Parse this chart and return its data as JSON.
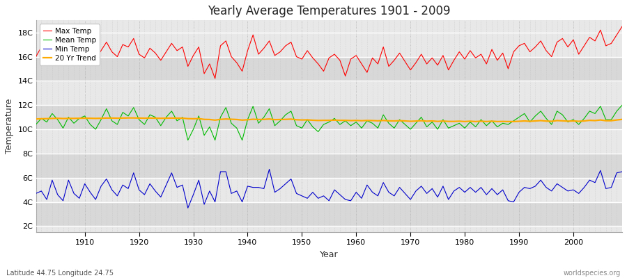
{
  "title": "Yearly Average Temperatures 1901 - 2009",
  "xlabel": "Year",
  "ylabel": "Temperature",
  "lat_lon_label": "Latitude 44.75 Longitude 24.75",
  "source_label": "worldspecies.org",
  "year_start": 1901,
  "year_end": 2009,
  "yticks": [
    2,
    4,
    6,
    8,
    10,
    12,
    14,
    16,
    18
  ],
  "ytick_labels": [
    "2C",
    "4C",
    "6C",
    "8C",
    "10C",
    "12C",
    "14C",
    "16C",
    "18C"
  ],
  "ylim": [
    1.5,
    19.0
  ],
  "fig_bg_color": "#ffffff",
  "plot_bg_color": "#e8e8e8",
  "line_color_max": "#ff0000",
  "line_color_mean": "#00bb00",
  "line_color_min": "#0000cc",
  "line_color_trend": "#ffaa00",
  "legend_labels": [
    "Max Temp",
    "Mean Temp",
    "Min Temp",
    "20 Yr Trend"
  ],
  "max_temps": [
    16.0,
    16.8,
    16.3,
    16.9,
    17.1,
    15.3,
    17.2,
    16.5,
    17.4,
    16.8,
    16.1,
    15.8,
    16.5,
    17.2,
    16.4,
    16.0,
    17.0,
    16.8,
    17.5,
    16.2,
    15.9,
    16.7,
    16.3,
    15.7,
    16.4,
    17.1,
    16.5,
    16.8,
    15.2,
    16.1,
    16.8,
    14.6,
    15.4,
    14.2,
    16.9,
    17.3,
    16.0,
    15.5,
    14.8,
    16.5,
    17.8,
    16.2,
    16.7,
    17.3,
    16.1,
    16.4,
    16.9,
    17.2,
    16.0,
    15.8,
    16.5,
    15.9,
    15.4,
    14.8,
    15.9,
    16.2,
    15.7,
    14.4,
    15.8,
    16.1,
    15.4,
    14.7,
    15.9,
    15.4,
    16.8,
    15.2,
    15.7,
    16.3,
    15.6,
    14.9,
    15.5,
    16.2,
    15.4,
    15.9,
    15.3,
    16.1,
    14.9,
    15.7,
    16.4,
    15.8,
    16.5,
    15.9,
    16.2,
    15.4,
    16.6,
    15.7,
    16.3,
    15.0,
    16.4,
    16.9,
    17.1,
    16.4,
    16.8,
    17.3,
    16.5,
    16.0,
    17.2,
    17.5,
    16.8,
    17.4,
    16.2,
    16.9,
    17.6,
    17.3,
    18.2,
    16.9,
    17.1,
    17.8,
    18.5
  ],
  "mean_temps": [
    10.4,
    10.9,
    10.6,
    11.3,
    10.8,
    10.1,
    11.0,
    10.5,
    10.9,
    11.1,
    10.4,
    10.0,
    10.8,
    11.7,
    10.7,
    10.4,
    11.4,
    11.1,
    11.8,
    10.8,
    10.4,
    11.2,
    11.0,
    10.3,
    11.0,
    11.5,
    10.7,
    11.0,
    9.1,
    10.0,
    11.1,
    9.5,
    10.2,
    9.1,
    11.0,
    11.8,
    10.5,
    10.1,
    9.1,
    10.8,
    11.9,
    10.5,
    11.0,
    11.7,
    10.3,
    10.7,
    11.2,
    11.5,
    10.3,
    10.1,
    10.8,
    10.2,
    9.8,
    10.4,
    10.6,
    10.9,
    10.4,
    10.7,
    10.3,
    10.6,
    10.1,
    10.7,
    10.5,
    10.1,
    11.2,
    10.5,
    10.1,
    10.8,
    10.4,
    10.0,
    10.5,
    11.0,
    10.2,
    10.6,
    10.0,
    10.8,
    10.1,
    10.3,
    10.5,
    10.1,
    10.6,
    10.2,
    10.8,
    10.3,
    10.7,
    10.2,
    10.5,
    10.4,
    10.7,
    11.0,
    11.3,
    10.6,
    11.1,
    11.5,
    10.9,
    10.4,
    11.5,
    11.2,
    10.6,
    10.8,
    10.4,
    10.9,
    11.5,
    11.3,
    11.9,
    10.8,
    10.8,
    11.5,
    12.0
  ],
  "min_temps": [
    4.7,
    4.9,
    4.2,
    5.8,
    4.6,
    4.1,
    5.8,
    4.7,
    4.3,
    5.5,
    4.8,
    4.2,
    5.3,
    5.9,
    5.0,
    4.5,
    5.4,
    5.1,
    6.4,
    5.0,
    4.6,
    5.5,
    4.9,
    4.4,
    5.4,
    6.4,
    5.2,
    5.4,
    3.5,
    4.6,
    5.8,
    3.8,
    4.9,
    4.0,
    6.5,
    6.5,
    4.7,
    4.9,
    4.0,
    5.3,
    5.2,
    5.2,
    5.1,
    6.7,
    4.8,
    5.1,
    5.5,
    5.9,
    4.7,
    4.5,
    4.3,
    4.8,
    4.3,
    4.5,
    4.1,
    5.0,
    4.6,
    4.2,
    4.1,
    4.8,
    4.3,
    5.4,
    4.8,
    4.5,
    5.6,
    4.8,
    4.5,
    5.2,
    4.7,
    4.2,
    4.9,
    5.3,
    4.7,
    5.1,
    4.4,
    5.3,
    4.2,
    4.9,
    5.2,
    4.8,
    5.2,
    4.8,
    5.2,
    4.6,
    5.1,
    4.6,
    5.0,
    4.1,
    4.0,
    4.8,
    5.2,
    5.1,
    5.3,
    5.8,
    5.2,
    4.9,
    5.5,
    5.2,
    4.9,
    5.0,
    4.7,
    5.2,
    5.8,
    5.6,
    6.6,
    5.1,
    5.2,
    6.4,
    6.5
  ],
  "trend_temps": [
    10.85,
    10.87,
    10.88,
    10.9,
    10.91,
    10.89,
    10.9,
    10.9,
    10.91,
    10.92,
    10.91,
    10.9,
    10.91,
    10.93,
    10.93,
    10.92,
    10.93,
    10.94,
    10.94,
    10.93,
    10.92,
    10.93,
    10.92,
    10.91,
    10.92,
    10.93,
    10.92,
    10.92,
    10.88,
    10.87,
    10.88,
    10.82,
    10.81,
    10.76,
    10.82,
    10.85,
    10.83,
    10.81,
    10.76,
    10.79,
    10.83,
    10.81,
    10.82,
    10.85,
    10.8,
    10.81,
    10.82,
    10.84,
    10.79,
    10.77,
    10.78,
    10.75,
    10.73,
    10.74,
    10.74,
    10.76,
    10.74,
    10.74,
    10.72,
    10.73,
    10.71,
    10.73,
    10.72,
    10.7,
    10.73,
    10.7,
    10.69,
    10.71,
    10.69,
    10.66,
    10.68,
    10.71,
    10.67,
    10.69,
    10.65,
    10.68,
    10.65,
    10.65,
    10.67,
    10.64,
    10.67,
    10.64,
    10.67,
    10.64,
    10.67,
    10.64,
    10.65,
    10.64,
    10.64,
    10.66,
    10.69,
    10.66,
    10.69,
    10.72,
    10.68,
    10.66,
    10.72,
    10.7,
    10.67,
    10.69,
    10.66,
    10.69,
    10.74,
    10.72,
    10.77,
    10.71,
    10.71,
    10.77,
    10.82
  ]
}
